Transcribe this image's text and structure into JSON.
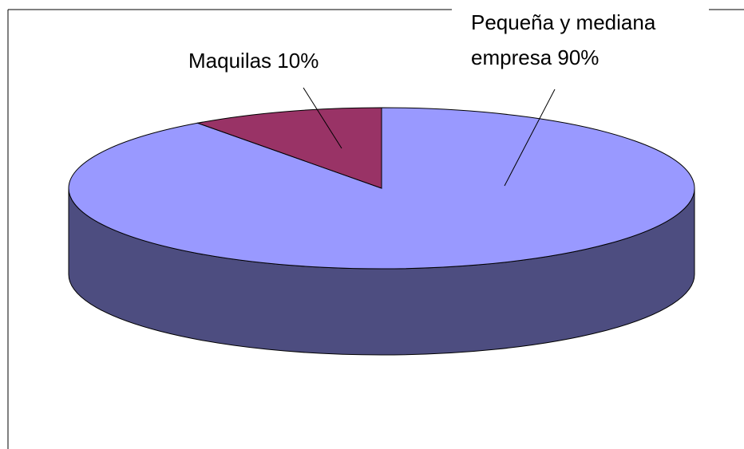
{
  "chart_data": {
    "type": "pie3d",
    "categories": [
      "Pequeña y mediana empresa",
      "Maquilas"
    ],
    "values": [
      90,
      10
    ],
    "value_labels": [
      "90%",
      "10%"
    ],
    "colors": [
      "#9999ff",
      "#993366"
    ]
  }
}
